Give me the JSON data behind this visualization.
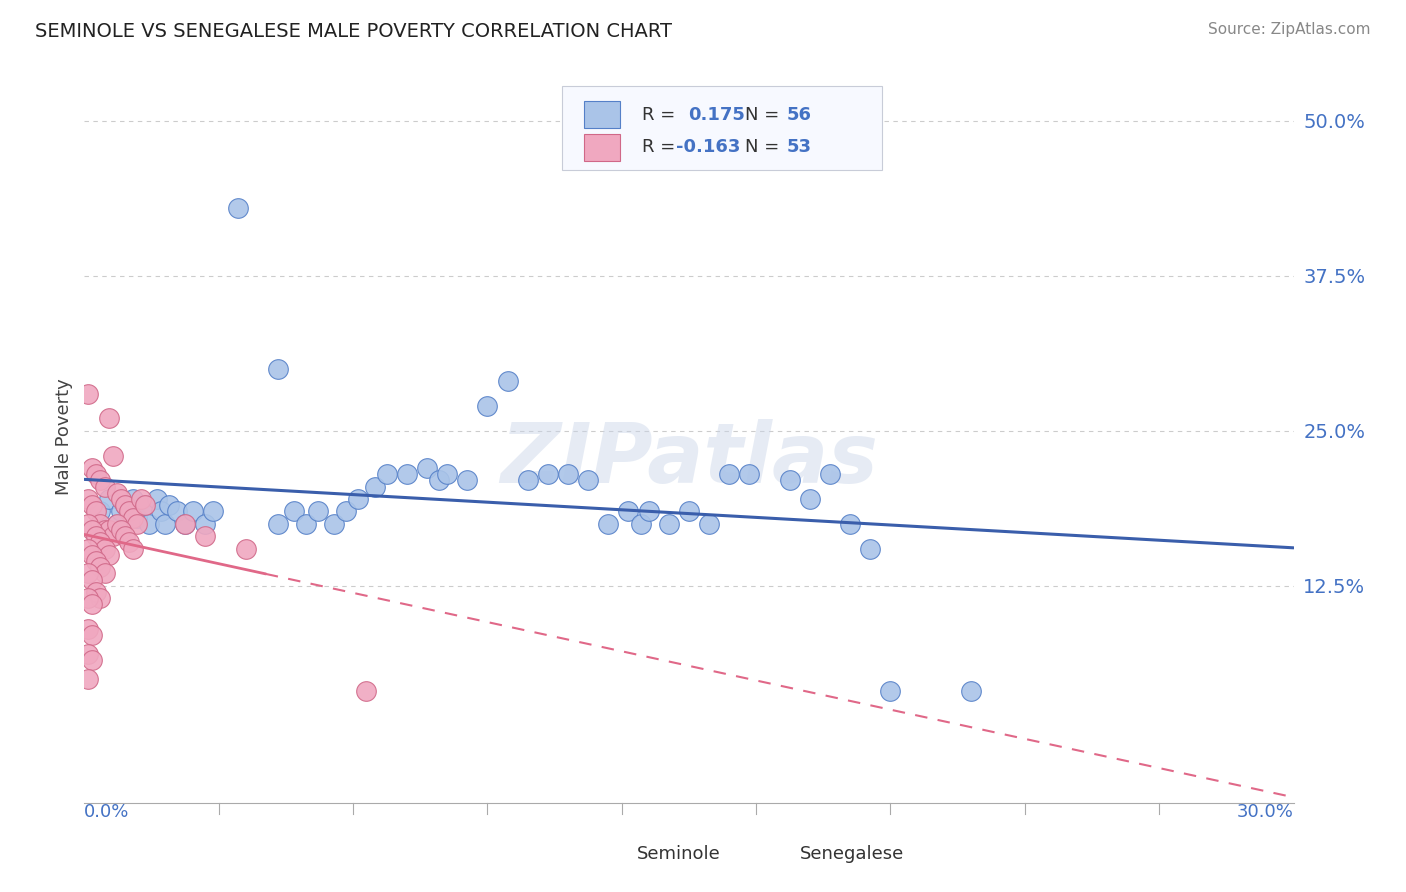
{
  "title": "SEMINOLE VS SENEGALESE MALE POVERTY CORRELATION CHART",
  "source": "Source: ZipAtlas.com",
  "ylabel": "Male Poverty",
  "xlim": [
    0.0,
    0.3
  ],
  "ylim": [
    -0.05,
    0.54
  ],
  "ytick_values": [
    0.125,
    0.25,
    0.375,
    0.5
  ],
  "grid_color": "#cccccc",
  "background_color": "#ffffff",
  "seminole_color": "#aac4e8",
  "senegalese_color": "#f0a8c0",
  "seminole_edge_color": "#5580c8",
  "senegalese_edge_color": "#d06888",
  "seminole_line_color": "#3a5eab",
  "senegalese_line_color": "#e06888",
  "value_color": "#4472c4",
  "legend_R_seminole": "0.175",
  "legend_N_seminole": "56",
  "legend_R_senegalese": "-0.163",
  "legend_N_senegalese": "53",
  "seminole_points": [
    [
      0.004,
      0.185
    ],
    [
      0.006,
      0.195
    ],
    [
      0.008,
      0.175
    ],
    [
      0.009,
      0.185
    ],
    [
      0.01,
      0.19
    ],
    [
      0.012,
      0.195
    ],
    [
      0.013,
      0.18
    ],
    [
      0.015,
      0.19
    ],
    [
      0.016,
      0.175
    ],
    [
      0.018,
      0.195
    ],
    [
      0.019,
      0.185
    ],
    [
      0.02,
      0.175
    ],
    [
      0.021,
      0.19
    ],
    [
      0.023,
      0.185
    ],
    [
      0.025,
      0.175
    ],
    [
      0.027,
      0.185
    ],
    [
      0.03,
      0.175
    ],
    [
      0.032,
      0.185
    ],
    [
      0.048,
      0.175
    ],
    [
      0.052,
      0.185
    ],
    [
      0.055,
      0.175
    ],
    [
      0.058,
      0.185
    ],
    [
      0.062,
      0.175
    ],
    [
      0.065,
      0.185
    ],
    [
      0.068,
      0.195
    ],
    [
      0.038,
      0.43
    ],
    [
      0.048,
      0.3
    ],
    [
      0.072,
      0.205
    ],
    [
      0.075,
      0.215
    ],
    [
      0.08,
      0.215
    ],
    [
      0.085,
      0.22
    ],
    [
      0.088,
      0.21
    ],
    [
      0.09,
      0.215
    ],
    [
      0.095,
      0.21
    ],
    [
      0.1,
      0.27
    ],
    [
      0.105,
      0.29
    ],
    [
      0.11,
      0.21
    ],
    [
      0.115,
      0.215
    ],
    [
      0.12,
      0.215
    ],
    [
      0.125,
      0.21
    ],
    [
      0.13,
      0.175
    ],
    [
      0.135,
      0.185
    ],
    [
      0.138,
      0.175
    ],
    [
      0.14,
      0.185
    ],
    [
      0.145,
      0.175
    ],
    [
      0.15,
      0.185
    ],
    [
      0.155,
      0.175
    ],
    [
      0.16,
      0.215
    ],
    [
      0.165,
      0.215
    ],
    [
      0.175,
      0.21
    ],
    [
      0.18,
      0.195
    ],
    [
      0.185,
      0.215
    ],
    [
      0.19,
      0.175
    ],
    [
      0.195,
      0.155
    ],
    [
      0.2,
      0.04
    ],
    [
      0.22,
      0.04
    ]
  ],
  "senegalese_points": [
    [
      0.001,
      0.28
    ],
    [
      0.002,
      0.22
    ],
    [
      0.003,
      0.215
    ],
    [
      0.004,
      0.21
    ],
    [
      0.005,
      0.205
    ],
    [
      0.006,
      0.26
    ],
    [
      0.007,
      0.23
    ],
    [
      0.008,
      0.2
    ],
    [
      0.009,
      0.195
    ],
    [
      0.01,
      0.19
    ],
    [
      0.011,
      0.185
    ],
    [
      0.012,
      0.18
    ],
    [
      0.013,
      0.175
    ],
    [
      0.014,
      0.195
    ],
    [
      0.015,
      0.19
    ],
    [
      0.001,
      0.195
    ],
    [
      0.002,
      0.19
    ],
    [
      0.003,
      0.185
    ],
    [
      0.004,
      0.175
    ],
    [
      0.005,
      0.17
    ],
    [
      0.006,
      0.17
    ],
    [
      0.007,
      0.165
    ],
    [
      0.008,
      0.175
    ],
    [
      0.009,
      0.17
    ],
    [
      0.01,
      0.165
    ],
    [
      0.011,
      0.16
    ],
    [
      0.012,
      0.155
    ],
    [
      0.001,
      0.175
    ],
    [
      0.002,
      0.17
    ],
    [
      0.003,
      0.165
    ],
    [
      0.004,
      0.16
    ],
    [
      0.005,
      0.155
    ],
    [
      0.006,
      0.15
    ],
    [
      0.001,
      0.155
    ],
    [
      0.002,
      0.15
    ],
    [
      0.003,
      0.145
    ],
    [
      0.004,
      0.14
    ],
    [
      0.005,
      0.135
    ],
    [
      0.001,
      0.135
    ],
    [
      0.002,
      0.13
    ],
    [
      0.003,
      0.12
    ],
    [
      0.004,
      0.115
    ],
    [
      0.001,
      0.115
    ],
    [
      0.002,
      0.11
    ],
    [
      0.001,
      0.09
    ],
    [
      0.002,
      0.085
    ],
    [
      0.001,
      0.07
    ],
    [
      0.002,
      0.065
    ],
    [
      0.001,
      0.05
    ],
    [
      0.025,
      0.175
    ],
    [
      0.03,
      0.165
    ],
    [
      0.04,
      0.155
    ],
    [
      0.07,
      0.04
    ]
  ],
  "seminole_regression": [
    0.14,
    0.245
  ],
  "senegalese_regression_solid": [
    0.175,
    0.14
  ],
  "senegalese_regression_dashed_start": 0.035
}
